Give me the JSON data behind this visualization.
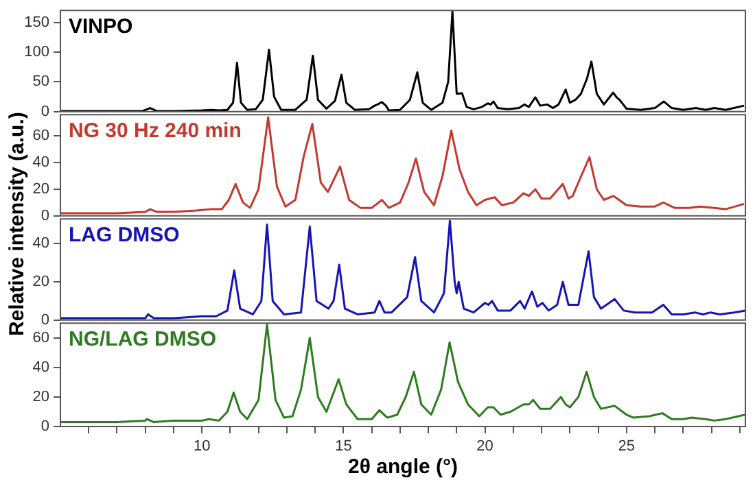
{
  "chart_data": [
    {
      "type": "line",
      "xlim": [
        5,
        29.2
      ],
      "ylim": [
        0,
        170
      ],
      "yticks": [
        0,
        50,
        100,
        150
      ],
      "tick_labels": "y",
      "series": [
        {
          "name": "VINPO",
          "color": "#000000",
          "x": [
            5,
            6,
            7,
            7.9,
            8.17,
            8.4,
            9,
            10,
            10.34,
            10.6,
            10.9,
            11.1,
            11.24,
            11.38,
            11.6,
            11.9,
            12.15,
            12.37,
            12.55,
            12.8,
            13.3,
            13.7,
            13.92,
            14.1,
            14.4,
            14.7,
            14.93,
            15.1,
            15.4,
            15.9,
            16.1,
            16.2,
            16.36,
            16.5,
            16.6,
            17.0,
            17.35,
            17.61,
            17.8,
            18.1,
            18.5,
            18.7,
            18.85,
            19.0,
            19.19,
            19.35,
            19.6,
            19.9,
            20.1,
            20.2,
            20.3,
            20.45,
            20.8,
            21.2,
            21.39,
            21.55,
            21.78,
            21.95,
            22.2,
            22.4,
            22.6,
            22.85,
            23.0,
            23.2,
            23.39,
            23.6,
            23.76,
            23.95,
            24.2,
            24.53,
            24.65,
            24.75,
            25.0,
            25.5,
            26.0,
            26.32,
            26.6,
            27.0,
            27.46,
            27.8,
            28.1,
            28.5,
            29.15
          ],
          "values": [
            1,
            1,
            1,
            1,
            6,
            1,
            1,
            2,
            3,
            2,
            3,
            15,
            82,
            15,
            3,
            4,
            20,
            104,
            25,
            3,
            3,
            20,
            94,
            20,
            5,
            18,
            62,
            15,
            3,
            4,
            10,
            12,
            16,
            10,
            2,
            3,
            20,
            66,
            15,
            3,
            15,
            50,
            168,
            30,
            31,
            8,
            4,
            8,
            14,
            12,
            17,
            6,
            4,
            6,
            12,
            8,
            24,
            10,
            12,
            6,
            12,
            37,
            15,
            20,
            30,
            55,
            84,
            30,
            12,
            32,
            24,
            20,
            5,
            3,
            6,
            17,
            6,
            3,
            6,
            3,
            6,
            3,
            10
          ]
        }
      ]
    },
    {
      "type": "line",
      "xlim": [
        5,
        29.2
      ],
      "ylim": [
        0,
        76
      ],
      "yticks": [
        0,
        20,
        40,
        60
      ],
      "tick_labels": "y",
      "ylabel": "Relative intensity (a.u.)",
      "series": [
        {
          "name": "NG 30 Hz 240 min",
          "color": "#c4392f",
          "x": [
            5,
            6,
            7,
            8,
            8.17,
            8.4,
            9,
            9.8,
            10.34,
            10.7,
            10.95,
            11.19,
            11.45,
            11.7,
            12.0,
            12.34,
            12.65,
            12.95,
            13.3,
            13.6,
            13.9,
            14.2,
            14.45,
            14.88,
            15.2,
            15.6,
            16.0,
            16.36,
            16.6,
            17.0,
            17.3,
            17.56,
            17.85,
            18.2,
            18.5,
            18.81,
            19.1,
            19.4,
            19.7,
            20.0,
            20.34,
            20.6,
            21.0,
            21.36,
            21.55,
            21.78,
            22.0,
            22.3,
            22.75,
            22.95,
            23.1,
            23.4,
            23.69,
            23.95,
            24.2,
            24.54,
            25.0,
            25.5,
            26.0,
            26.3,
            26.7,
            27.2,
            27.6,
            28.1,
            28.5,
            29.15
          ],
          "values": [
            2,
            2,
            2,
            3,
            5,
            3,
            3,
            4,
            5,
            5,
            12,
            24,
            10,
            6,
            20,
            74,
            22,
            7,
            12,
            45,
            69,
            25,
            18,
            37,
            12,
            6,
            6,
            12,
            6,
            10,
            25,
            43,
            18,
            8,
            30,
            64,
            35,
            18,
            8,
            12,
            14,
            8,
            10,
            17,
            15,
            20,
            13,
            13,
            24,
            13,
            15,
            30,
            44,
            20,
            12,
            15,
            8,
            7,
            7,
            10,
            6,
            6,
            7,
            6,
            5,
            9
          ]
        }
      ]
    },
    {
      "type": "line",
      "xlim": [
        5,
        29.2
      ],
      "ylim": [
        0,
        53
      ],
      "yticks": [
        0,
        20,
        40
      ],
      "tick_labels": "y",
      "series": [
        {
          "name": "LAG DMSO",
          "color": "#1414b8",
          "x": [
            5,
            6,
            7,
            8,
            8.1,
            8.3,
            9,
            10,
            10.25,
            10.5,
            10.9,
            11.14,
            11.35,
            11.8,
            12.1,
            12.3,
            12.5,
            12.9,
            13.5,
            13.81,
            14.05,
            14.47,
            14.65,
            14.85,
            15.05,
            15.5,
            16.1,
            16.27,
            16.45,
            16.7,
            17.25,
            17.53,
            17.75,
            18.2,
            18.55,
            18.76,
            18.93,
            19.0,
            19.07,
            19.25,
            19.6,
            20.0,
            20.12,
            20.25,
            20.45,
            20.9,
            21.24,
            21.4,
            21.66,
            21.85,
            22.03,
            22.25,
            22.55,
            22.75,
            22.95,
            23.3,
            23.66,
            23.85,
            24.1,
            24.58,
            24.9,
            25.3,
            25.6,
            25.9,
            26.3,
            26.6,
            27.0,
            27.42,
            27.7,
            27.97,
            28.3,
            28.8,
            29.2
          ],
          "values": [
            1,
            1,
            1,
            1,
            3,
            1,
            1,
            2,
            2,
            2,
            5,
            26,
            6,
            3,
            10,
            50,
            10,
            3,
            4,
            49,
            10,
            6,
            10,
            29,
            6,
            3,
            4,
            10,
            4,
            4,
            12,
            33,
            10,
            4,
            14,
            52,
            20,
            14,
            20,
            6,
            4,
            9,
            8,
            10,
            5,
            5,
            10,
            6,
            15,
            7,
            9,
            5,
            8,
            20,
            8,
            8,
            36,
            12,
            6,
            11,
            5,
            4,
            4,
            4,
            8,
            3,
            3,
            4,
            3,
            4,
            3,
            4,
            5
          ]
        }
      ]
    },
    {
      "type": "line",
      "xlim": [
        5,
        29.2
      ],
      "ylim": [
        0,
        70
      ],
      "yticks": [
        0,
        20,
        40,
        60
      ],
      "xlabel": "2θ angle (°)",
      "xticks": [
        {
          "value": 6,
          "label": null
        },
        {
          "value": 7,
          "label": null
        },
        {
          "value": 8,
          "label": null
        },
        {
          "value": 9,
          "label": null
        },
        10,
        {
          "value": 11,
          "label": null
        },
        {
          "value": 12,
          "label": null
        },
        {
          "value": 13,
          "label": null
        },
        {
          "value": 14,
          "label": null
        },
        15,
        {
          "value": 16,
          "label": null
        },
        {
          "value": 17,
          "label": null
        },
        {
          "value": 18,
          "label": null
        },
        {
          "value": 19,
          "label": null
        },
        20,
        {
          "value": 21,
          "label": null
        },
        {
          "value": 22,
          "label": null
        },
        {
          "value": 23,
          "label": null
        },
        {
          "value": 24,
          "label": null
        },
        25,
        {
          "value": 26,
          "label": null
        },
        {
          "value": 27,
          "label": null
        },
        {
          "value": 28,
          "label": null
        },
        {
          "value": 29,
          "label": null
        }
      ],
      "series": [
        {
          "name": "NG/LAG DMSO",
          "color": "#2f7a22",
          "x": [
            5,
            6,
            7,
            8,
            8.05,
            8.3,
            9,
            10,
            10.25,
            10.6,
            10.9,
            11.12,
            11.35,
            11.6,
            12.0,
            12.3,
            12.6,
            12.9,
            13.2,
            13.5,
            13.81,
            14.1,
            14.4,
            14.83,
            15.1,
            15.5,
            16.0,
            16.27,
            16.55,
            16.9,
            17.2,
            17.49,
            17.75,
            18.1,
            18.45,
            18.75,
            19.05,
            19.4,
            19.8,
            20.1,
            20.3,
            20.55,
            20.9,
            21.36,
            21.55,
            21.7,
            21.95,
            22.3,
            22.68,
            22.85,
            23.0,
            23.3,
            23.59,
            23.85,
            24.1,
            24.58,
            25.0,
            25.25,
            25.8,
            26.27,
            26.6,
            27.0,
            27.3,
            27.8,
            28.1,
            28.5,
            29.2
          ],
          "values": [
            3,
            3,
            3,
            4,
            5,
            3,
            4,
            4,
            5,
            4,
            10,
            23,
            10,
            5,
            18,
            69,
            18,
            6,
            7,
            25,
            60,
            20,
            10,
            32,
            15,
            5,
            5,
            11,
            6,
            8,
            20,
            37,
            15,
            8,
            25,
            57,
            30,
            15,
            7,
            13,
            13,
            8,
            10,
            15,
            15,
            18,
            12,
            12,
            20,
            15,
            13,
            20,
            37,
            20,
            12,
            14,
            8,
            6,
            7,
            9,
            5,
            5,
            6,
            5,
            4,
            5,
            8
          ]
        }
      ]
    }
  ]
}
